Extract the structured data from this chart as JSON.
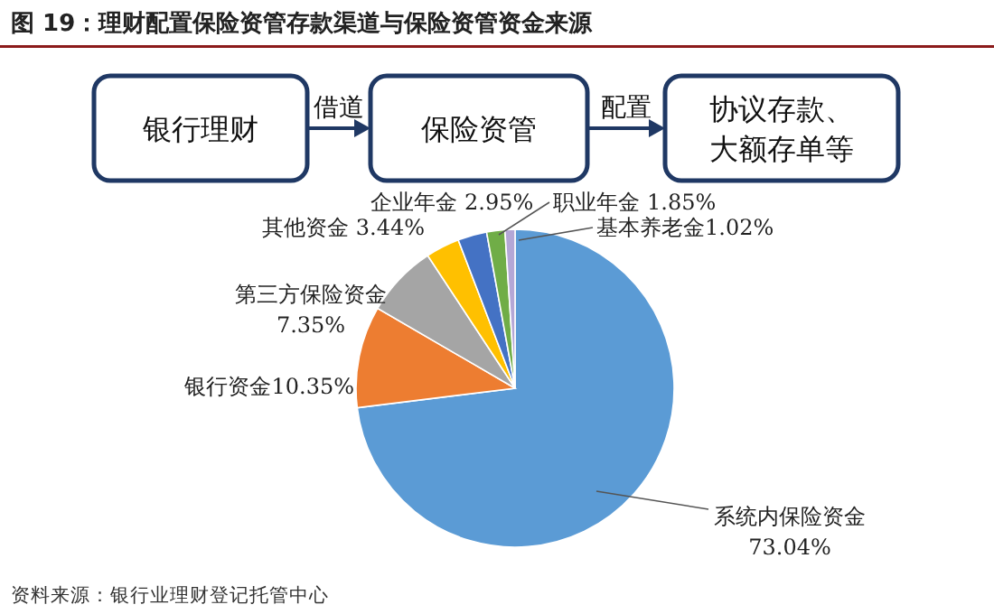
{
  "chart_data": {
    "type": "pie",
    "title": "图 19：理财配置保险资管存款渠道与保险资管资金来源",
    "categories": [
      "系统内保险资金",
      "银行资金",
      "第三方保险资金",
      "其他资金",
      "企业年金",
      "职业年金",
      "基本养老金"
    ],
    "values": [
      73.04,
      10.35,
      7.35,
      3.44,
      2.95,
      1.85,
      1.02
    ],
    "colors": [
      "#5b9bd5",
      "#ed7d31",
      "#a5a5a5",
      "#ffc000",
      "#4472c4",
      "#70ad47",
      "#b4a7d6"
    ],
    "value_labels": [
      "73.04%",
      "10.35%",
      "7.35%",
      "3.44%",
      "2.95%",
      "1.85%",
      "1.02%"
    ],
    "annotations": [
      "银行理财",
      "借道",
      "保险资管",
      "配置",
      "协议存款、",
      "大额存单等",
      "资料来源：银行业理财登记托管中心"
    ]
  }
}
